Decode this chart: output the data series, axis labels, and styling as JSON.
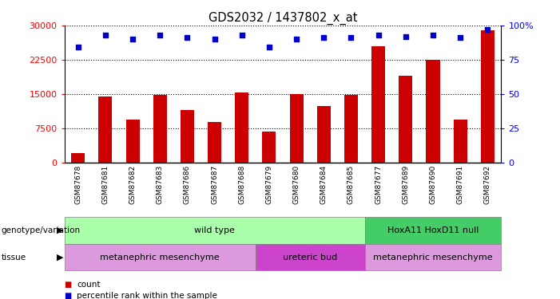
{
  "title": "GDS2032 / 1437802_x_at",
  "samples": [
    "GSM87678",
    "GSM87681",
    "GSM87682",
    "GSM87683",
    "GSM87686",
    "GSM87687",
    "GSM87688",
    "GSM87679",
    "GSM87680",
    "GSM87684",
    "GSM87685",
    "GSM87677",
    "GSM87689",
    "GSM87690",
    "GSM87691",
    "GSM87692"
  ],
  "counts": [
    2200,
    14500,
    9500,
    14800,
    11500,
    9000,
    15300,
    6800,
    15000,
    12500,
    14800,
    25500,
    19000,
    22500,
    9500,
    29000
  ],
  "percentile_ranks": [
    84,
    93,
    90,
    93,
    91,
    90,
    93,
    84,
    90,
    91,
    91,
    93,
    92,
    93,
    91,
    97
  ],
  "bar_color": "#cc0000",
  "dot_color": "#0000cc",
  "ylim_left": [
    0,
    30000
  ],
  "ylim_right": [
    0,
    100
  ],
  "yticks_left": [
    0,
    7500,
    15000,
    22500,
    30000
  ],
  "yticks_right": [
    0,
    25,
    50,
    75,
    100
  ],
  "genotype_groups": [
    {
      "label": "wild type",
      "start": 0,
      "end": 11,
      "color": "#aaffaa"
    },
    {
      "label": "HoxA11 HoxD11 null",
      "start": 11,
      "end": 16,
      "color": "#44cc66"
    }
  ],
  "tissue_groups": [
    {
      "label": "metanephric mesenchyme",
      "start": 0,
      "end": 7,
      "color": "#dd99dd"
    },
    {
      "label": "ureteric bud",
      "start": 7,
      "end": 11,
      "color": "#cc44cc"
    },
    {
      "label": "metanephric mesenchyme",
      "start": 11,
      "end": 16,
      "color": "#dd99dd"
    }
  ],
  "legend_count_color": "#cc0000",
  "legend_pct_color": "#0000cc",
  "bg_color": "#ffffff",
  "xtick_bg": "#cccccc"
}
